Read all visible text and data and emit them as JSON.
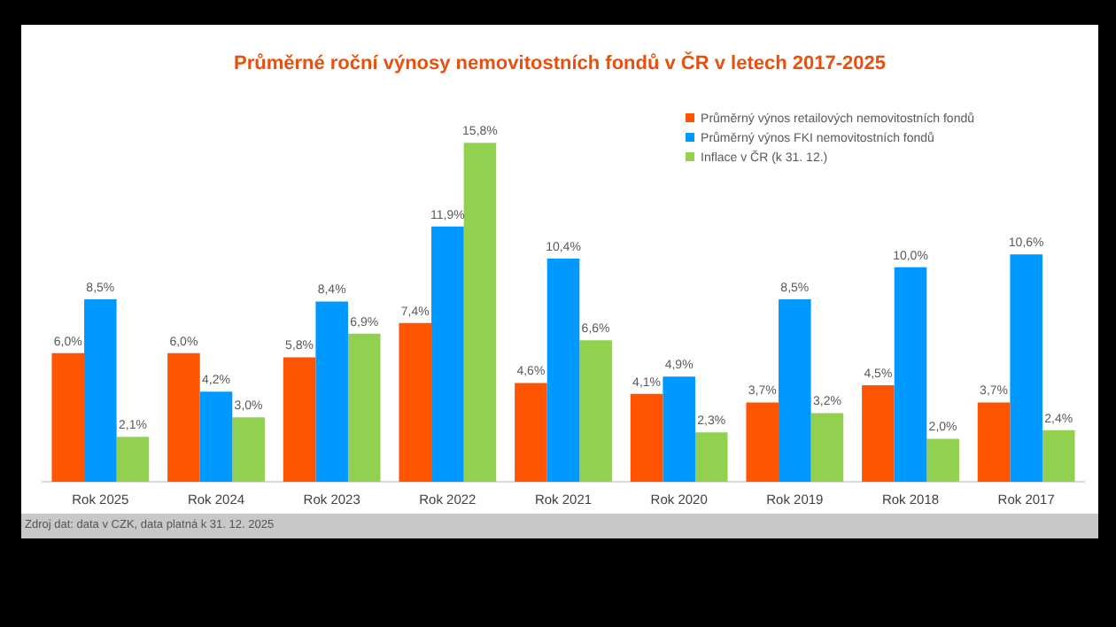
{
  "chart_data": {
    "type": "bar",
    "title": "Průměrné roční výnosy nemovitostních fondů v ČR v letech 2017-2025",
    "categories": [
      "Rok 2025",
      "Rok 2024",
      "Rok 2023",
      "Rok 2022",
      "Rok 2021",
      "Rok 2020",
      "Rok 2019",
      "Rok 2018",
      "Rok 2017"
    ],
    "series": [
      {
        "name": "Průměrný výnos retailových nemovitostních fondů",
        "color": "#ff5500",
        "values": [
          6.0,
          6.0,
          5.8,
          7.4,
          4.6,
          4.1,
          3.7,
          4.5,
          3.7
        ],
        "value_labels": [
          "6,0%",
          "6,0%",
          "5,8%",
          "7,4%",
          "4,6%",
          "4,1%",
          "3,7%",
          "4,5%",
          "3,7%"
        ]
      },
      {
        "name": "Průměrný výnos FKI nemovitostních fondů",
        "color": "#0099ff",
        "values": [
          8.5,
          4.2,
          8.4,
          11.9,
          10.4,
          4.9,
          8.5,
          10.0,
          10.6
        ],
        "value_labels": [
          "8,5%",
          "4,2%",
          "8,4%",
          "11,9%",
          "10,4%",
          "4,9%",
          "8,5%",
          "10,0%",
          "10,6%"
        ]
      },
      {
        "name": "Inflace v ČR (k 31. 12.)",
        "color": "#92d050",
        "values": [
          2.1,
          3.0,
          6.9,
          15.8,
          6.6,
          2.3,
          3.2,
          2.0,
          2.4
        ],
        "value_labels": [
          "2,1%",
          "3,0%",
          "6,9%",
          "15,8%",
          "6,6%",
          "2,3%",
          "3,2%",
          "2,0%",
          "2,4%"
        ]
      }
    ],
    "legend": "top right",
    "grid": false,
    "annotations": [
      "Zdroj dat: data v CZK, data platná k 31. 12. 2025"
    ]
  }
}
